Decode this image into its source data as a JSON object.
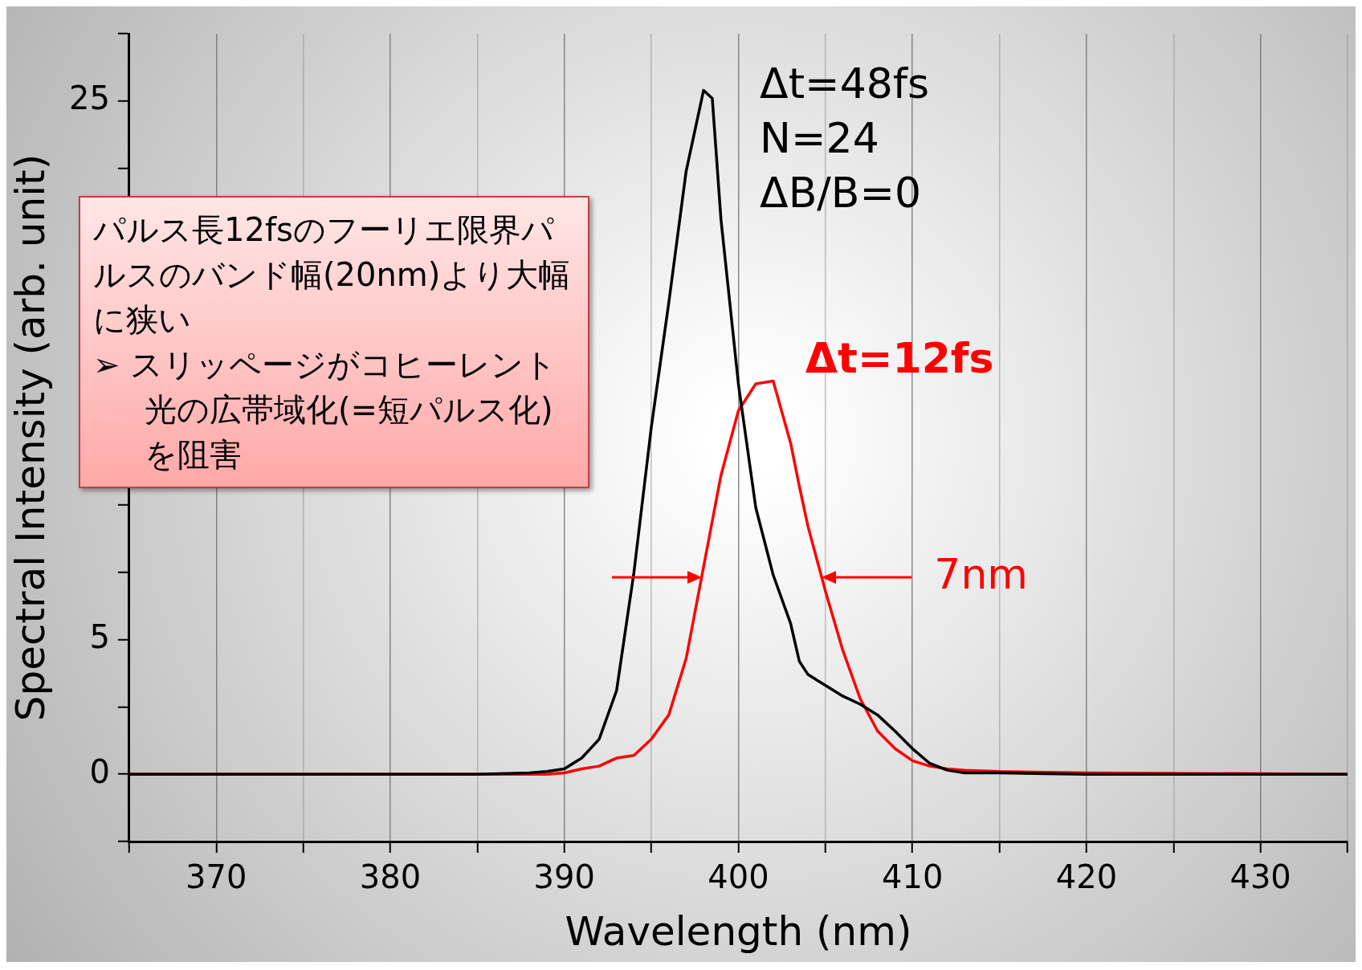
{
  "chart_data": {
    "type": "line",
    "xlabel": "Wavelength (nm)",
    "ylabel": "Spectral Intensity (arb. unit)",
    "xlim": [
      365,
      435
    ],
    "ylim": [
      -2.5,
      27.5
    ],
    "xticks": [
      {
        "value": 365,
        "label": null
      },
      370,
      {
        "value": 375,
        "label": null
      },
      380,
      {
        "value": 385,
        "label": null
      },
      390,
      {
        "value": 395,
        "label": null
      },
      400,
      {
        "value": 405,
        "label": null
      },
      410,
      {
        "value": 415,
        "label": null
      },
      420,
      {
        "value": 425,
        "label": null
      },
      430,
      {
        "value": 435,
        "label": null
      }
    ],
    "yticks": [
      {
        "value": -2.5,
        "label": null
      },
      0,
      {
        "value": 2.5,
        "label": null
      },
      5,
      {
        "value": 7.5,
        "label": null
      },
      {
        "value": 10,
        "label": null
      },
      {
        "value": 12.5,
        "label": null
      },
      {
        "value": 15,
        "label": null
      },
      {
        "value": 17.5,
        "label": null
      },
      {
        "value": 20,
        "label": null
      },
      {
        "value": 22.5,
        "label": null
      },
      25,
      {
        "value": 27.5,
        "label": null
      }
    ],
    "grid": "x",
    "legend": false,
    "marker": "none",
    "line_style": "solid",
    "x": [
      365,
      385,
      388,
      389,
      390,
      391,
      392,
      393,
      394,
      395,
      396,
      397,
      398,
      398.5,
      399,
      400,
      401,
      402,
      403,
      403.5,
      404,
      405,
      406,
      407,
      408,
      409,
      410,
      411,
      412,
      413,
      415,
      420,
      435
    ],
    "series": [
      {
        "name": "Δt=48fs",
        "color": "#000000",
        "values": [
          0,
          0,
          0.05,
          0.1,
          0.2,
          0.6,
          1.3,
          3.1,
          7.5,
          12.9,
          17.5,
          22.4,
          25.4,
          25.1,
          20.6,
          14.5,
          9.9,
          7.4,
          5.6,
          4.2,
          3.7,
          3.3,
          2.9,
          2.6,
          2.2,
          1.6,
          0.95,
          0.4,
          0.15,
          0.05,
          0.05,
          0,
          0
        ]
      },
      {
        "name": "Δt=12fs",
        "color": "#ff0000",
        "values": [
          0,
          0,
          0,
          0,
          0.05,
          0.2,
          0.3,
          0.6,
          0.7,
          1.3,
          2.2,
          4.3,
          7.7,
          9.4,
          11.1,
          13.5,
          14.5,
          14.6,
          12.3,
          10.7,
          9.2,
          6.8,
          4.6,
          2.8,
          1.6,
          0.95,
          0.5,
          0.3,
          0.2,
          0.15,
          0.1,
          0.05,
          0
        ]
      }
    ],
    "annotations": [
      "N=24",
      "ΔB/B=0",
      "7nm",
      "パルス長12fsのフーリエ限界パルスのバンド幅(20nm)より大幅に狭い",
      "➢ スリッページがコヒーレント光の広帯域化(=短パルス化)を阻害"
    ]
  }
}
